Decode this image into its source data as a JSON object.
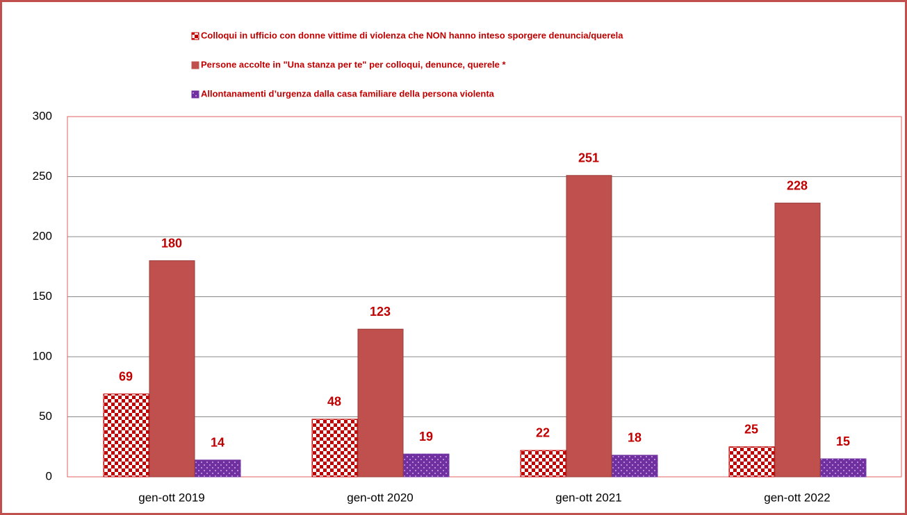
{
  "chart_data": {
    "type": "bar",
    "categories": [
      "gen-ott 2019",
      "gen-ott 2020",
      "gen-ott 2021",
      "gen-ott 2022"
    ],
    "series": [
      {
        "name": "Colloqui in ufficio con donne vittime di violenza che NON hanno inteso sporgere denuncia/querela",
        "color": "#c00000",
        "pattern": "checker",
        "values": [
          69,
          48,
          22,
          25
        ]
      },
      {
        "name": "Persone accolte in \"Una stanza per te\" per colloqui, denunce, querele *",
        "color": "#c0504d",
        "pattern": "solid",
        "values": [
          180,
          123,
          251,
          228
        ]
      },
      {
        "name": "Allontanamenti d’urgenza dalla casa familiare della persona violenta",
        "color": "#7030a0",
        "pattern": "dots",
        "values": [
          14,
          19,
          18,
          15
        ]
      }
    ],
    "ylim": [
      0,
      300
    ],
    "yticks": [
      0,
      50,
      100,
      150,
      200,
      250,
      300
    ],
    "grid": true
  }
}
